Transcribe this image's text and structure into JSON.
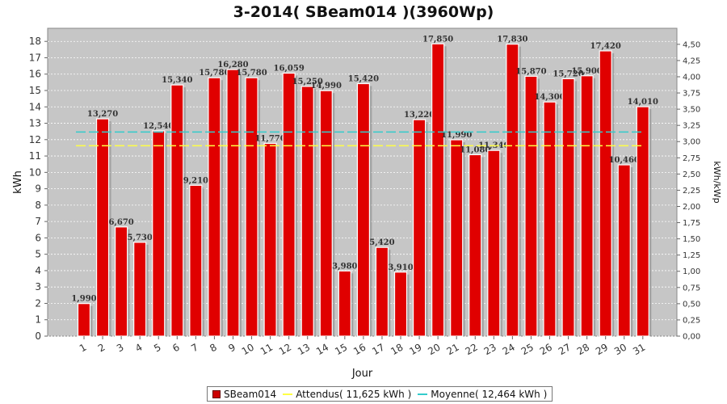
{
  "chart_data": {
    "type": "bar",
    "title": "3-2014( SBeam014 )(3960Wp)",
    "xlabel": "Jour",
    "ylabel": "kWh",
    "ylabel_right": "kWh/kWp",
    "categories": [
      "1",
      "2",
      "3",
      "4",
      "5",
      "6",
      "7",
      "8",
      "9",
      "10",
      "11",
      "12",
      "13",
      "14",
      "15",
      "16",
      "17",
      "18",
      "19",
      "20",
      "21",
      "22",
      "23",
      "24",
      "25",
      "26",
      "27",
      "28",
      "29",
      "30",
      "31"
    ],
    "series": [
      {
        "name": "SBeam014",
        "values": [
          1.99,
          13.27,
          6.67,
          5.73,
          12.54,
          15.34,
          9.21,
          15.78,
          16.28,
          15.78,
          11.77,
          16.059,
          15.25,
          14.99,
          3.98,
          15.42,
          5.42,
          3.91,
          13.22,
          17.85,
          11.99,
          11.08,
          11.34,
          17.83,
          15.87,
          14.3,
          15.72,
          15.9,
          17.42,
          10.46,
          14.01
        ],
        "labels": [
          "1,990",
          "13,270",
          "6,670",
          "5,730",
          "12,540",
          "15,340",
          "9,210",
          "15,780",
          "16,280",
          "15,780",
          "11,770",
          "16,059",
          "15,250",
          "14,990",
          "3,980",
          "15,420",
          "5,420",
          "3,910",
          "13,220",
          "17,850",
          "11,990",
          "11,080",
          "11,340",
          "17,830",
          "15,870",
          "14,300",
          "15,720",
          "15,900",
          "17,420",
          "10,460",
          "14,010"
        ],
        "color": "#e00000"
      }
    ],
    "reference_lines": [
      {
        "name": "Attendus",
        "value": 11.625,
        "color": "#ffff44"
      },
      {
        "name": "Moyenne",
        "value": 12.464,
        "color": "#33cccc"
      }
    ],
    "ylim": [
      0,
      18.8
    ],
    "y_ticks": [
      "0",
      "1",
      "2",
      "3",
      "4",
      "5",
      "6",
      "7",
      "8",
      "9",
      "10",
      "11",
      "12",
      "13",
      "14",
      "15",
      "16",
      "17",
      "18"
    ],
    "y2_ticks": [
      "0,00",
      "0,25",
      "0,50",
      "0,75",
      "1,00",
      "1,25",
      "1,50",
      "1,75",
      "2,00",
      "2,25",
      "2,50",
      "2,75",
      "3,00",
      "3,25",
      "3,50",
      "3,75",
      "4,00",
      "4,25",
      "4,50"
    ],
    "grid": true,
    "legend_position": "bottom",
    "legend": [
      {
        "label": "SBeam014",
        "kind": "box",
        "color": "#cc0000"
      },
      {
        "label": "Attendus( 11,625 kWh )",
        "kind": "line",
        "color": "#ffff44"
      },
      {
        "label": "Moyenne( 12,464 kWh )",
        "kind": "line",
        "color": "#33cccc"
      }
    ]
  }
}
